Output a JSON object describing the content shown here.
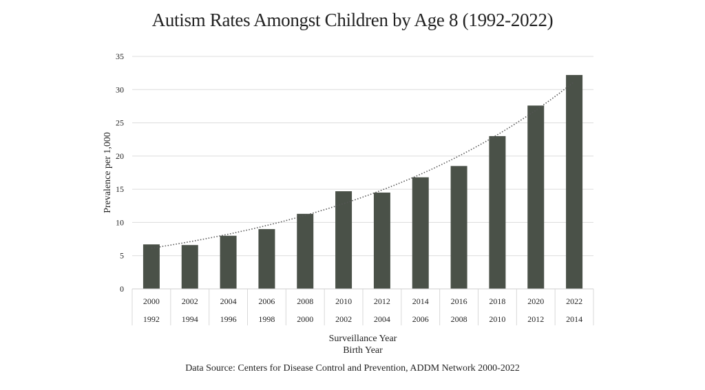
{
  "chart_data": {
    "type": "bar",
    "title": "Autism Rates Amongst Children by Age 8 (1992-2022)",
    "ylabel": "Prevalence per 1,000",
    "xlabel": [
      "Surveillance Year",
      "Birth Year"
    ],
    "categories": [
      "2000",
      "2002",
      "2004",
      "2006",
      "2008",
      "2010",
      "2012",
      "2014",
      "2016",
      "2018",
      "2020",
      "2022"
    ],
    "categories_secondary": [
      "1992",
      "1994",
      "1996",
      "1998",
      "2000",
      "2002",
      "2004",
      "2006",
      "2008",
      "2010",
      "2012",
      "2014"
    ],
    "values": [
      6.7,
      6.6,
      8.0,
      9.0,
      11.3,
      14.7,
      14.5,
      16.8,
      18.5,
      23.0,
      27.6,
      32.2
    ],
    "ylim": [
      0,
      35
    ],
    "yticks": [
      0,
      5,
      10,
      15,
      20,
      25,
      30,
      35
    ],
    "grid": true,
    "trendline": "exponential",
    "bar_color": "#4a5148",
    "trendline_color": "#555555",
    "source": "Data Source: Centers for Disease Control and Prevention, ADDM Network 2000-2022"
  }
}
